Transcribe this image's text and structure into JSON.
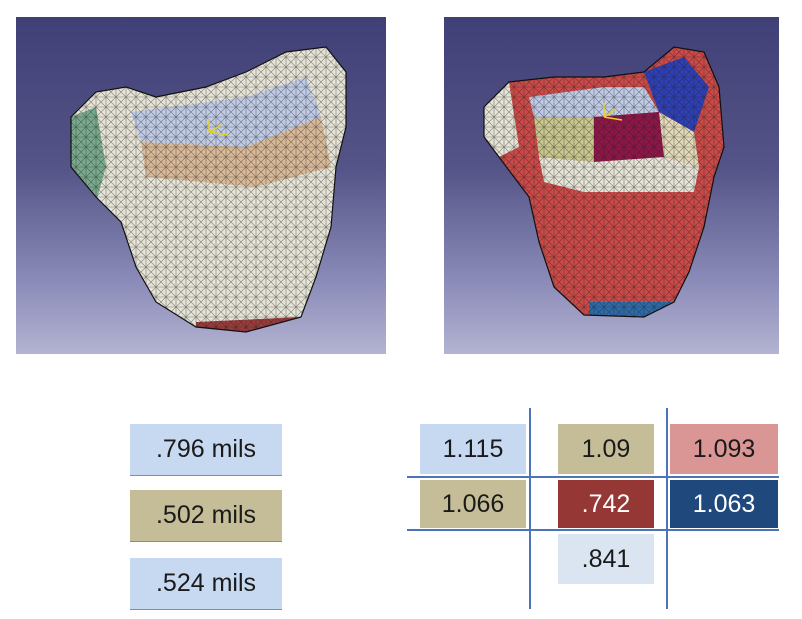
{
  "left_table": [
    {
      "text": ".796 mils",
      "color": "#c6d9f1"
    },
    {
      "text": ".502 mils",
      "color": "#c4bd97"
    },
    {
      "text": ".524 mils",
      "color": "#c6d9f1"
    }
  ],
  "right_table": {
    "rows": [
      [
        {
          "text": "1.115",
          "color": "#c6d9f1"
        },
        {
          "text": "1.09",
          "color": "#c4bd97"
        },
        {
          "text": "1.093",
          "color": "#d99694"
        }
      ],
      [
        {
          "text": "1.066",
          "color": "#c4bd97"
        },
        {
          "text": ".742",
          "color": "#953735"
        },
        {
          "text": "1.063",
          "color": "#1f497d"
        }
      ],
      [
        {
          "text": "",
          "color": ""
        },
        {
          "text": ".841",
          "color": "#dbe5f1"
        },
        {
          "text": "",
          "color": ""
        }
      ]
    ]
  },
  "views": {
    "left": {
      "icon": "bone-mesh-icon"
    },
    "right": {
      "icon": "bone-mesh-colored-icon"
    }
  }
}
